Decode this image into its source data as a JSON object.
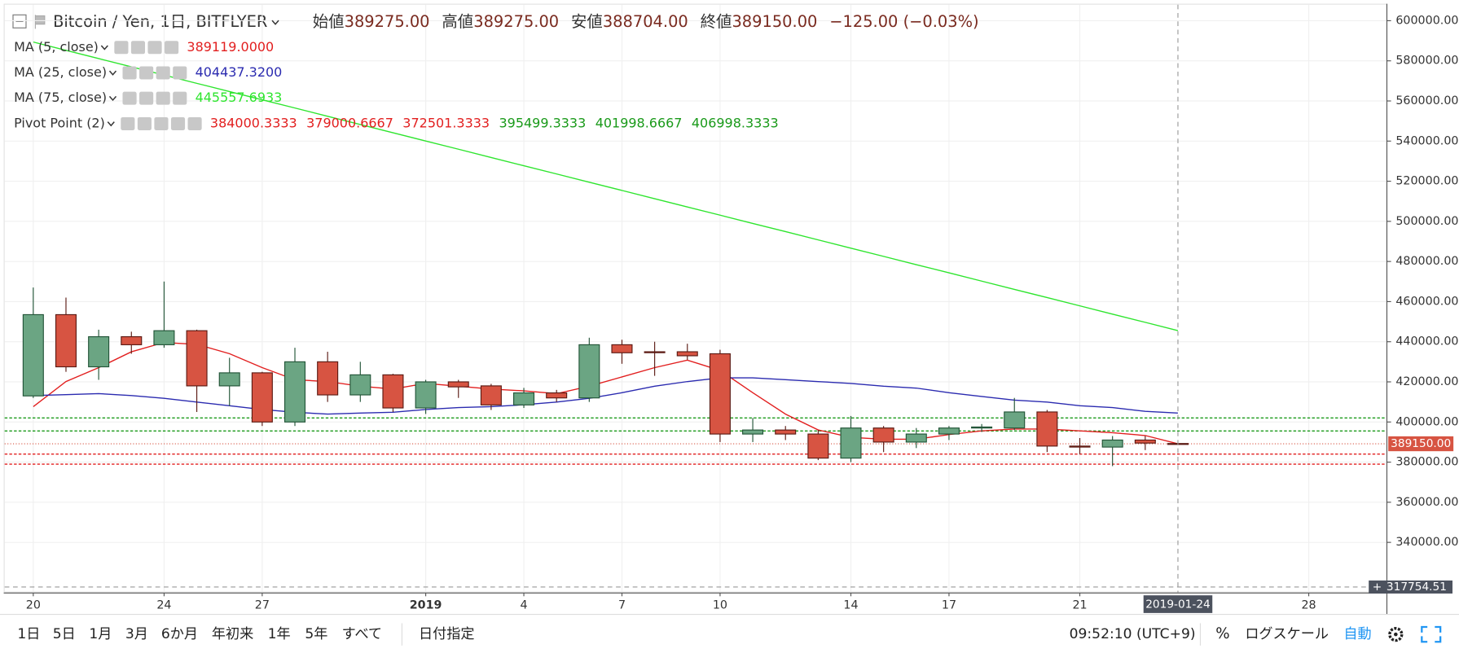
{
  "chart_data": {
    "type": "candlestick",
    "title": "Bitcoin / Yen, 1日, BITFLYER",
    "ohlc_legend": [
      {
        "label": "始値",
        "value": "389275.00"
      },
      {
        "label": "高値",
        "value": "389275.00"
      },
      {
        "label": "安値",
        "value": "388704.00"
      },
      {
        "label": "終値",
        "value": "389150.00"
      }
    ],
    "change": "−125.00 (−0.03%)",
    "x": [
      "2018-12-20",
      "2018-12-21",
      "2018-12-22",
      "2018-12-23",
      "2018-12-24",
      "2018-12-25",
      "2018-12-26",
      "2018-12-27",
      "2018-12-28",
      "2018-12-29",
      "2018-12-30",
      "2018-12-31",
      "2019-01-01",
      "2019-01-02",
      "2019-01-03",
      "2019-01-04",
      "2019-01-05",
      "2019-01-06",
      "2019-01-07",
      "2019-01-08",
      "2019-01-09",
      "2019-01-10",
      "2019-01-11",
      "2019-01-12",
      "2019-01-13",
      "2019-01-14",
      "2019-01-15",
      "2019-01-16",
      "2019-01-17",
      "2019-01-18",
      "2019-01-19",
      "2019-01-20",
      "2019-01-21",
      "2019-01-22",
      "2019-01-23",
      "2019-01-24"
    ],
    "open": [
      413000,
      453500,
      427500,
      442500,
      438500,
      445500,
      418000,
      424500,
      400000,
      430000,
      413500,
      423500,
      407000,
      420000,
      418000,
      408500,
      414500,
      412000,
      438500,
      435000,
      435000,
      434000,
      394000,
      396000,
      394000,
      382000,
      397000,
      390000,
      394000,
      397000,
      397000,
      405000,
      388000,
      387500,
      391000,
      389275
    ],
    "high": [
      467000,
      462000,
      446000,
      445000,
      470000,
      446000,
      432000,
      425000,
      437000,
      435000,
      430000,
      424000,
      421000,
      421000,
      419000,
      417000,
      416000,
      442000,
      441000,
      440000,
      439000,
      436000,
      402000,
      398000,
      396000,
      403000,
      398000,
      397000,
      398000,
      399000,
      412000,
      406000,
      392000,
      393000,
      393000,
      389275
    ],
    "low": [
      412000,
      425000,
      421000,
      434000,
      437000,
      405000,
      408000,
      398000,
      398000,
      410000,
      410000,
      405000,
      404000,
      412000,
      406000,
      407000,
      410000,
      410000,
      429000,
      423000,
      431000,
      390000,
      390000,
      391000,
      381000,
      380000,
      385000,
      387000,
      391000,
      395000,
      396000,
      385000,
      384000,
      378000,
      386000,
      388704
    ],
    "close": [
      453500,
      427500,
      442500,
      438500,
      445500,
      418000,
      424500,
      400000,
      430000,
      413500,
      423500,
      407000,
      420000,
      417500,
      408500,
      414500,
      412000,
      438500,
      434500,
      434800,
      433000,
      394000,
      396000,
      394000,
      382000,
      397000,
      390000,
      394000,
      397000,
      397500,
      405000,
      388000,
      387500,
      391000,
      389500,
      389150
    ],
    "up_color": "#6ba583",
    "down_color": "#d75442",
    "series": [
      {
        "name": "MA (5, close)",
        "color": "#e21f1f",
        "value_label": "389119.0000",
        "values": [
          407650,
          420160,
          427110,
          434990,
          439630,
          438700,
          434070,
          427110,
          421090,
          420160,
          417840,
          416450,
          419230,
          417840,
          416450,
          415520,
          414130,
          417840,
          422480,
          427110,
          430820,
          425720,
          414600,
          403940,
          396060,
          392350,
          391420,
          391420,
          393740,
          395590,
          396520,
          396520,
          395590,
          394660,
          393280,
          389119
        ]
      },
      {
        "name": "MA (25, close)",
        "color": "#2b2bb0",
        "value_label": "404437.3200",
        "values": [
          413200,
          413670,
          414140,
          413200,
          411820,
          409960,
          408110,
          406260,
          404870,
          403940,
          404410,
          404870,
          406260,
          407190,
          407650,
          408580,
          409960,
          411820,
          414600,
          417840,
          420160,
          422020,
          422020,
          421090,
          420160,
          419230,
          417840,
          416910,
          414600,
          412750,
          410890,
          409960,
          408110,
          407190,
          405330,
          404437.32
        ]
      },
      {
        "name": "MA (75, close)",
        "color": "#2ee52e",
        "value_label": "445557.6933",
        "values": [
          589340,
          585230,
          581120,
          577020,
          572910,
          568800,
          564690,
          560580,
          556480,
          552370,
          548260,
          544150,
          540040,
          535940,
          531830,
          527720,
          523610,
          519500,
          515400,
          511290,
          507180,
          503070,
          498960,
          494860,
          490750,
          486640,
          482530,
          478420,
          474320,
          470210,
          466100,
          461990,
          457880,
          453780,
          449670,
          445557.6933
        ]
      }
    ],
    "pivot": {
      "name": "Pivot Point (2)",
      "levels": [
        {
          "value": 384000.3333,
          "color": "#e21f1f",
          "line": true
        },
        {
          "value": 379000.6667,
          "color": "#e21f1f",
          "line": true
        },
        {
          "value": 372501.3333,
          "color": "#e21f1f",
          "line": false
        },
        {
          "value": 395499.3333,
          "color": "#1a9a1a",
          "line": true
        },
        {
          "value": 401998.6667,
          "color": "#1a9a1a",
          "line": true
        },
        {
          "value": 406998.3333,
          "color": "#1a9a1a",
          "line": false
        }
      ]
    },
    "last_price": {
      "value": 389150,
      "label": "389150.00"
    },
    "crosshair": {
      "x": "2019-01-24",
      "x_label": "2019-01-24",
      "y": 317754.51,
      "y_label": "317754.51"
    },
    "xlim": [
      "2018-12-19T03:00Z",
      "2019-01-30T09:00Z"
    ],
    "xticks": [
      {
        "value": "2018-12-20",
        "label": "20"
      },
      {
        "value": "2018-12-24",
        "label": "24"
      },
      {
        "value": "2018-12-27",
        "label": "27"
      },
      {
        "value": "2019-01-01",
        "label": "2019"
      },
      {
        "value": "2019-01-04",
        "label": "4"
      },
      {
        "value": "2019-01-07",
        "label": "7"
      },
      {
        "value": "2019-01-10",
        "label": "10"
      },
      {
        "value": "2019-01-14",
        "label": "14"
      },
      {
        "value": "2019-01-17",
        "label": "17"
      },
      {
        "value": "2019-01-21",
        "label": "21"
      },
      {
        "value": "2019-01-28",
        "label": "28"
      }
    ],
    "ylim": [
      315000,
      608000
    ],
    "yticks": [
      {
        "value": 340000,
        "label": "340000.00"
      },
      {
        "value": 360000,
        "label": "360000.00"
      },
      {
        "value": 380000,
        "label": "380000.00"
      },
      {
        "value": 400000,
        "label": "400000.00"
      },
      {
        "value": 420000,
        "label": "420000.00"
      },
      {
        "value": 440000,
        "label": "440000.00"
      },
      {
        "value": 460000,
        "label": "460000.00"
      },
      {
        "value": 480000,
        "label": "480000.00"
      },
      {
        "value": 500000,
        "label": "500000.00"
      },
      {
        "value": 520000,
        "label": "520000.00"
      },
      {
        "value": 540000,
        "label": "540000.00"
      },
      {
        "value": 560000,
        "label": "560000.00"
      },
      {
        "value": 580000,
        "label": "580000.00"
      },
      {
        "value": 600000,
        "label": "600000.00"
      }
    ],
    "grid": true,
    "toolbar": {
      "ranges": [
        "1日",
        "5日",
        "1月",
        "3月",
        "6か月",
        "年初来",
        "1年",
        "5年",
        "すべて"
      ],
      "date_button": "日付指定",
      "clock": "09:52:10 (UTC+9)",
      "percent": "%",
      "log": "ログスケール",
      "auto": "自動"
    }
  }
}
